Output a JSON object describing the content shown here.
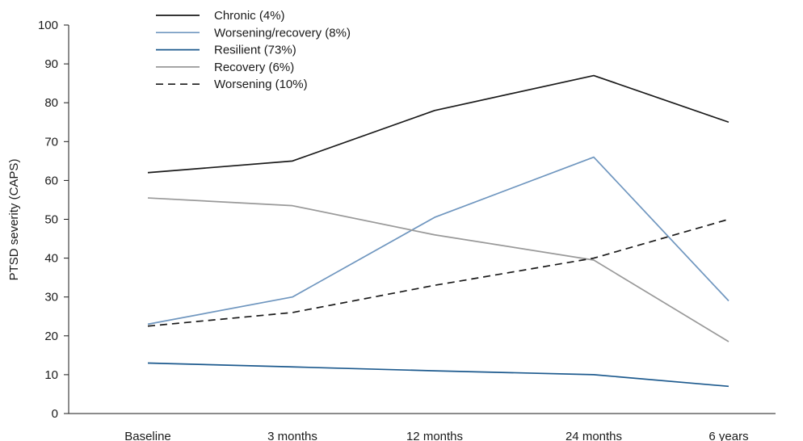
{
  "chart_data": {
    "type": "line",
    "ylabel": "PTSD severity (CAPS)",
    "xlabel": "",
    "categories": [
      "Baseline",
      "3 months",
      "12 months",
      "24 months",
      "6 years"
    ],
    "ylim": [
      0,
      100
    ],
    "yticks": [
      0,
      10,
      20,
      30,
      40,
      50,
      60,
      70,
      80,
      90,
      100
    ],
    "grid": false,
    "legend_position": "top-left",
    "series": [
      {
        "name": "Chronic (4%)",
        "values": [
          62,
          65,
          78,
          87,
          75
        ],
        "color": "#1a1a1a",
        "dash": "solid"
      },
      {
        "name": "Worsening/recovery (8%)",
        "values": [
          23,
          30,
          50.5,
          66,
          29
        ],
        "color": "#6f96bf",
        "dash": "solid"
      },
      {
        "name": "Resilient (73%)",
        "values": [
          13,
          12,
          11,
          10,
          7
        ],
        "color": "#1d5a8e",
        "dash": "solid"
      },
      {
        "name": "Recovery (6%)",
        "values": [
          55.5,
          53.5,
          46,
          39.5,
          18.5
        ],
        "color": "#999999",
        "dash": "solid"
      },
      {
        "name": "Worsening (10%)",
        "values": [
          22.5,
          26,
          33,
          40,
          50
        ],
        "color": "#1a1a1a",
        "dash": "dashed"
      }
    ]
  }
}
